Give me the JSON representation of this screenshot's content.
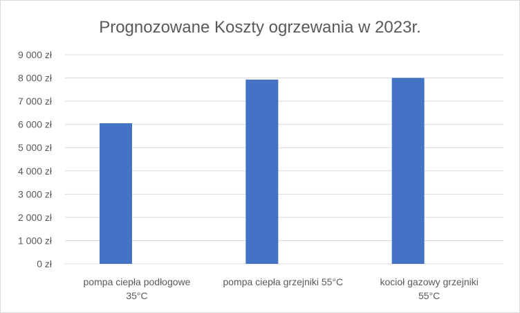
{
  "chart_data": {
    "type": "bar",
    "title": "Prognozowane Koszty ogrzewania w 2023r.",
    "xlabel": "",
    "ylabel": "",
    "ylim": [
      0,
      9000
    ],
    "y_ticks": [
      0,
      1000,
      2000,
      3000,
      4000,
      5000,
      6000,
      7000,
      8000,
      9000
    ],
    "y_tick_labels": [
      "0 zł",
      "1 000 zł",
      "2 000 zł",
      "3 000 zł",
      "4 000 zł",
      "5 000 zł",
      "6 000 zł",
      "7 000 zł",
      "8 000 zł",
      "9 000 zł"
    ],
    "categories": [
      [
        "pompa ciepła podłogowe",
        "35°C"
      ],
      [
        "pompa ciepła grzejniki 55°C"
      ],
      [
        "kocioł gazowy grzejniki",
        "55°C"
      ]
    ],
    "values": [
      6050,
      7930,
      8000
    ],
    "grid": true,
    "legend": "none",
    "colors": {
      "bar": "#4472C4",
      "grid": "#d9d9d9",
      "text": "#595959",
      "border": "#d9d9d9"
    }
  }
}
